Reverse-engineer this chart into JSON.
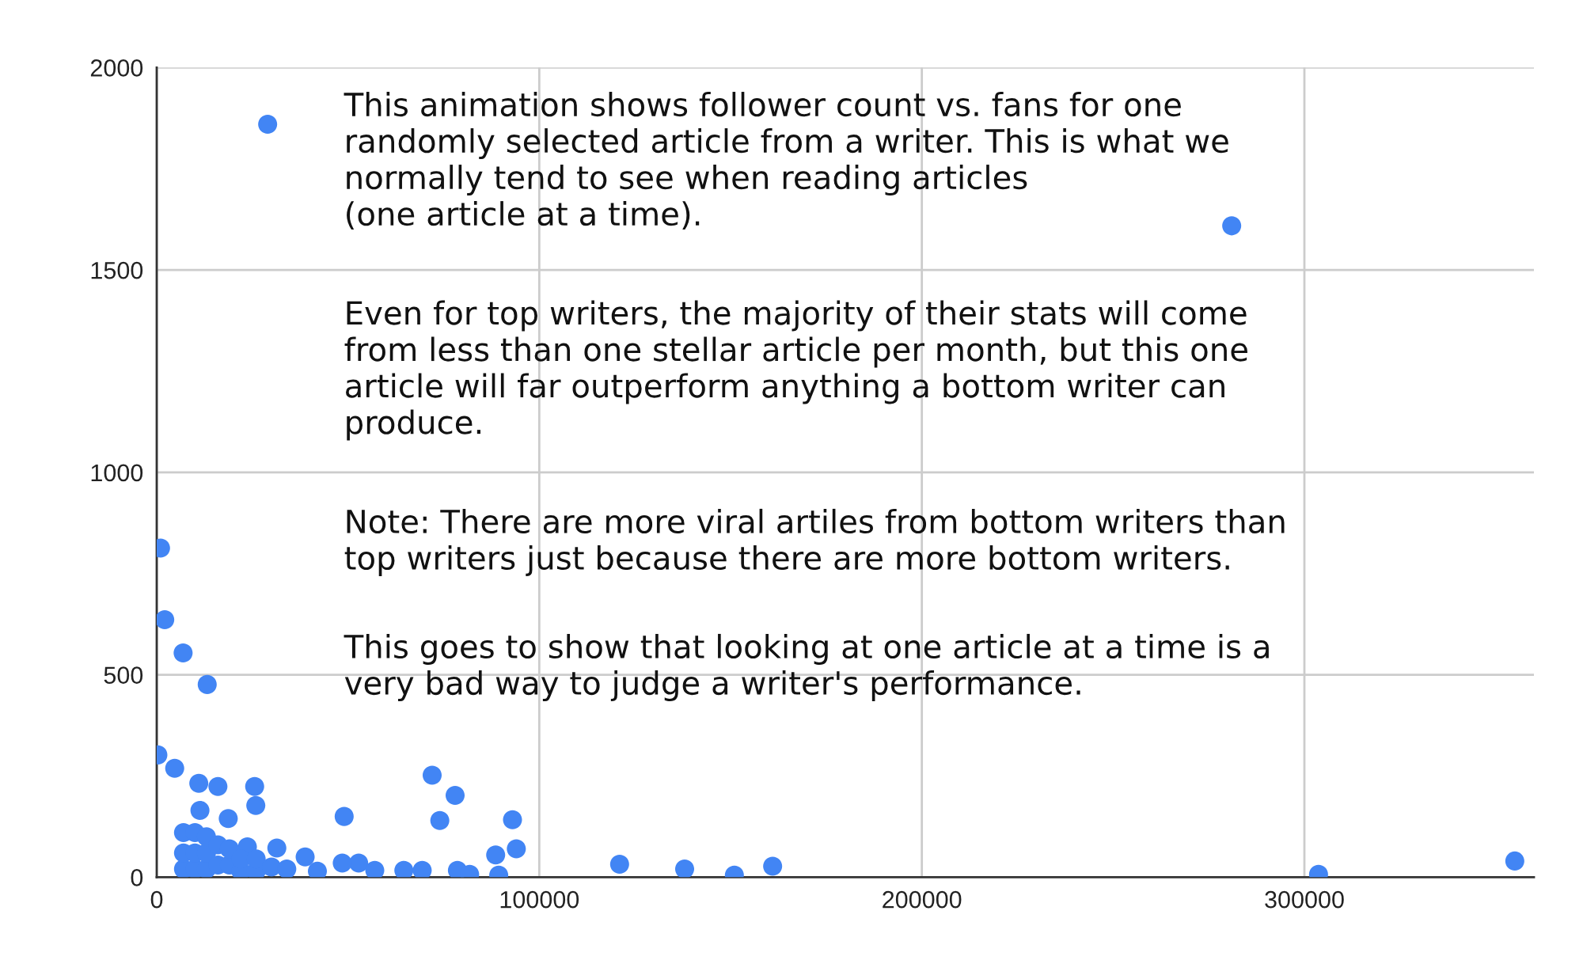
{
  "chart_data": {
    "type": "scatter",
    "xlim": [
      0,
      360000
    ],
    "ylim": [
      0,
      2000
    ],
    "xticks": [
      0,
      100000,
      200000,
      300000
    ],
    "yticks": [
      0,
      500,
      1000,
      1500,
      2000
    ],
    "grid": true,
    "marker": "circle",
    "series": [
      {
        "color": "#4285f4",
        "x": [
          29000,
          281000,
          1000,
          2100,
          6900,
          13200,
          300,
          4700,
          11000,
          16000,
          25600,
          25900,
          18700,
          11300,
          49000,
          72000,
          78000,
          74000,
          93000,
          94000,
          88600,
          52800,
          121000,
          138000,
          151000,
          161000,
          303700,
          355000,
          89400,
          23700,
          31400,
          38800,
          48500,
          57000,
          64600,
          69400,
          78600,
          81800,
          7000,
          7000,
          7000,
          10000,
          10000,
          10000,
          13000,
          13000,
          13000,
          16000,
          16000,
          19000,
          19000,
          22000,
          22000,
          26000,
          26000,
          30000,
          34000,
          42000
        ],
        "values": [
          1860,
          1609,
          813,
          636,
          554,
          476,
          302,
          269,
          232,
          224,
          224,
          177,
          145,
          165,
          150,
          252,
          202,
          140,
          142,
          70,
          55,
          35,
          32,
          20,
          5,
          27,
          7,
          40,
          5,
          75,
          72,
          50,
          35,
          17,
          17,
          17,
          17,
          7,
          20,
          60,
          110,
          20,
          60,
          110,
          20,
          60,
          100,
          30,
          80,
          30,
          70,
          15,
          45,
          15,
          45,
          25,
          20,
          15
        ]
      }
    ],
    "annotations": [
      "This animation shows follower count vs. fans for one\nrandomly selected article from a writer. This is what we\nnormally tend to see when reading articles\n(one article at a time).",
      "Even for top writers, the majority of their stats will come\nfrom less than one stellar article per month, but this one\narticle will far outperform anything a bottom writer can\nproduce.",
      "Note: There are more viral artiles from bottom writers than\ntop writers just because there are more bottom writers.",
      "This goes to show that looking at one article at a time is a\nvery bad way to judge a writer's performance."
    ]
  }
}
